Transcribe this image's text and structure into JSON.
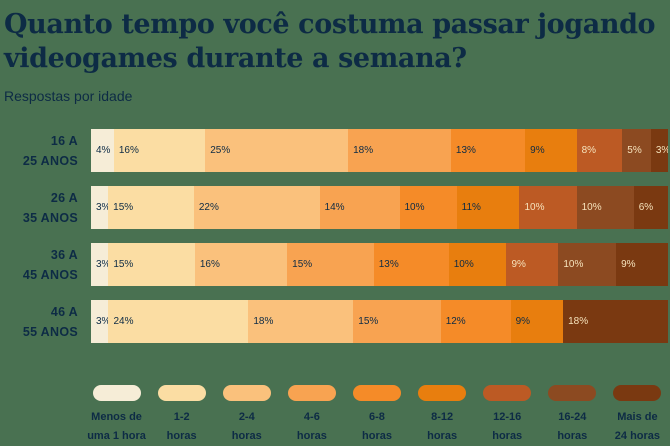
{
  "header": {
    "title_line1": "Quanto tempo você costuma passar jogando",
    "title_line2": "videogames durante a semana?",
    "subtitle": "Respostas por idade"
  },
  "colors": {
    "background": "#497151",
    "text_dark": "#0D2B45",
    "label_on_dark_segments": "#F6E3BC"
  },
  "chart_data": {
    "type": "bar",
    "variant": "horizontal-stacked-percent",
    "unit": "%",
    "legend_position": "bottom",
    "categories": [
      "Menos de uma 1 hora",
      "1-2 horas",
      "2-4 horas",
      "4-6 horas",
      "6-8 horas",
      "8-12 horas",
      "12-16 horas",
      "16-24 horas",
      "Mais de 24 horas"
    ],
    "palette": [
      "#F6EDD7",
      "#FBDDA3",
      "#FAC17C",
      "#F8A351",
      "#F58B28",
      "#E87E0E",
      "#BC5A24",
      "#8C4A21",
      "#7A3911"
    ],
    "light_text_from_index": 6,
    "groups": [
      {
        "label_lines": [
          "16 A",
          "25 ANOS"
        ],
        "segments": [
          {
            "category_index": 0,
            "value": 4
          },
          {
            "category_index": 1,
            "value": 16
          },
          {
            "category_index": 2,
            "value": 25
          },
          {
            "category_index": 3,
            "value": 18
          },
          {
            "category_index": 4,
            "value": 13
          },
          {
            "category_index": 5,
            "value": 9
          },
          {
            "category_index": 6,
            "value": 8
          },
          {
            "category_index": 7,
            "value": 5
          },
          {
            "category_index": 8,
            "value": 3
          }
        ]
      },
      {
        "label_lines": [
          "26 A",
          "35 ANOS"
        ],
        "segments": [
          {
            "category_index": 0,
            "value": 3
          },
          {
            "category_index": 1,
            "value": 15
          },
          {
            "category_index": 2,
            "value": 22
          },
          {
            "category_index": 3,
            "value": 14
          },
          {
            "category_index": 4,
            "value": 10
          },
          {
            "category_index": 5,
            "value": 11
          },
          {
            "category_index": 6,
            "value": 10
          },
          {
            "category_index": 7,
            "value": 10
          },
          {
            "category_index": 8,
            "value": 6
          }
        ]
      },
      {
        "label_lines": [
          "36 A",
          "45 ANOS"
        ],
        "segments": [
          {
            "category_index": 0,
            "value": 3
          },
          {
            "category_index": 1,
            "value": 15
          },
          {
            "category_index": 2,
            "value": 16
          },
          {
            "category_index": 3,
            "value": 15
          },
          {
            "category_index": 4,
            "value": 13
          },
          {
            "category_index": 5,
            "value": 10
          },
          {
            "category_index": 6,
            "value": 9
          },
          {
            "category_index": 7,
            "value": 10
          },
          {
            "category_index": 8,
            "value": 9
          }
        ]
      },
      {
        "label_lines": [
          "46 A",
          "55 ANOS"
        ],
        "segments": [
          {
            "category_index": 0,
            "value": 3
          },
          {
            "category_index": 1,
            "value": 24
          },
          {
            "category_index": 2,
            "value": 18
          },
          {
            "category_index": 3,
            "value": 15
          },
          {
            "category_index": 4,
            "value": 12
          },
          {
            "category_index": 5,
            "value": 9
          },
          {
            "category_index": 8,
            "value": 18
          }
        ]
      }
    ],
    "legend": [
      {
        "category_index": 0,
        "label_lines": [
          "Menos de",
          "uma 1 hora"
        ]
      },
      {
        "category_index": 1,
        "label_lines": [
          "1-2",
          "horas"
        ]
      },
      {
        "category_index": 2,
        "label_lines": [
          "2-4",
          "horas"
        ]
      },
      {
        "category_index": 3,
        "label_lines": [
          "4-6",
          "horas"
        ]
      },
      {
        "category_index": 4,
        "label_lines": [
          "6-8",
          "horas"
        ]
      },
      {
        "category_index": 5,
        "label_lines": [
          "8-12",
          "horas"
        ]
      },
      {
        "category_index": 6,
        "label_lines": [
          "12-16",
          "horas"
        ]
      },
      {
        "category_index": 7,
        "label_lines": [
          "16-24",
          "horas"
        ]
      },
      {
        "category_index": 8,
        "label_lines": [
          "Mais de",
          "24 horas"
        ]
      }
    ]
  }
}
